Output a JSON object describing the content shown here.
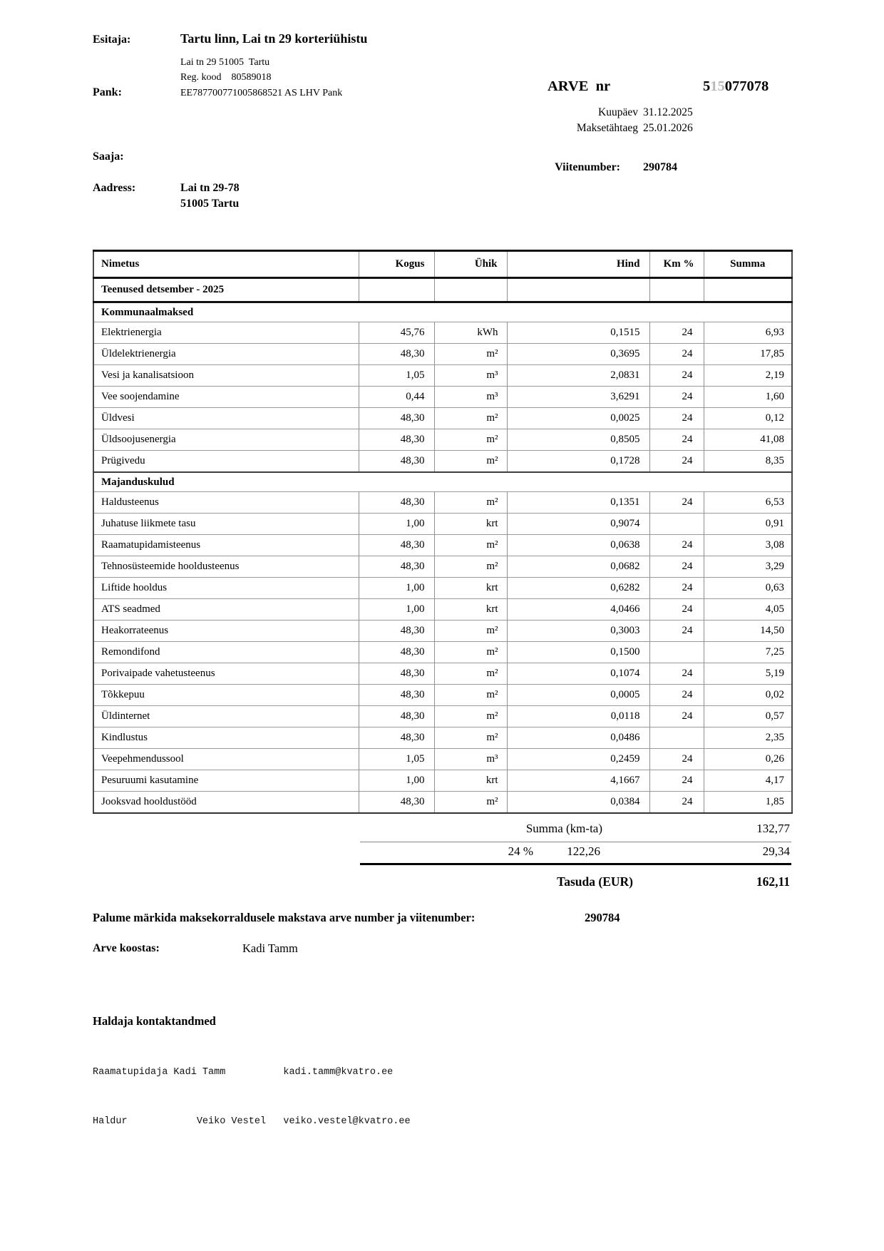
{
  "header": {
    "esitaja_label": "Esitaja:",
    "issuer_name": "Tartu linn, Lai tn 29 korteriühistu",
    "issuer_address": "Lai tn 29 51005  Tartu",
    "issuer_reg": "Reg. kood    80589018",
    "pank_label": "Pank:",
    "bank_account": "EE787700771005868521 AS LHV Pank",
    "arve_nr_label": "ARVE  nr",
    "invoice_number": {
      "part1": "5",
      "part2": "15",
      "part3": "077078"
    },
    "kuupaev_label": "Kuupäev",
    "kuupaev_value": "31.12.2025",
    "maksetahtaeg_label": "Maksetähtaeg",
    "maksetahtaeg_value": "25.01.2026",
    "saaja_label": "Saaja:",
    "viitenumber_label": "Viitenumber:",
    "viitenumber_value": "290784",
    "aadress_label": "Aadress:",
    "aadress_line1": "Lai tn 29-78",
    "aadress_line2": "51005 Tartu"
  },
  "table": {
    "columns": [
      "Nimetus",
      "Kogus",
      "Ühik",
      "Hind",
      "Km %",
      "Summa"
    ],
    "rows": [
      {
        "type": "title",
        "name": "Teenused detsember - 2025",
        "kogus": "",
        "yhik": "",
        "hind": "",
        "km": "",
        "summa": ""
      },
      {
        "type": "section",
        "name": "Kommunaalmaksed"
      },
      {
        "type": "item",
        "name": "Elektrienergia",
        "kogus": "45,76",
        "yhik": "kWh",
        "hind": "0,1515",
        "km": "24",
        "summa": "6,93"
      },
      {
        "type": "item",
        "name": "Üldelektrienergia",
        "kogus": "48,30",
        "yhik": "m²",
        "hind": "0,3695",
        "km": "24",
        "summa": "17,85"
      },
      {
        "type": "item",
        "name": "Vesi ja kanalisatsioon",
        "kogus": "1,05",
        "yhik": "m³",
        "hind": "2,0831",
        "km": "24",
        "summa": "2,19"
      },
      {
        "type": "item",
        "name": "Vee soojendamine",
        "kogus": "0,44",
        "yhik": "m³",
        "hind": "3,6291",
        "km": "24",
        "summa": "1,60"
      },
      {
        "type": "item",
        "name": "Üldvesi",
        "kogus": "48,30",
        "yhik": "m²",
        "hind": "0,0025",
        "km": "24",
        "summa": "0,12"
      },
      {
        "type": "item",
        "name": "Üldsoojusenergia",
        "kogus": "48,30",
        "yhik": "m²",
        "hind": "0,8505",
        "km": "24",
        "summa": "41,08"
      },
      {
        "type": "item",
        "name": "Prügivedu",
        "kogus": "48,30",
        "yhik": "m²",
        "hind": "0,1728",
        "km": "24",
        "summa": "8,35"
      },
      {
        "type": "section",
        "name": "Majanduskulud"
      },
      {
        "type": "item",
        "name": "Haldusteenus",
        "kogus": "48,30",
        "yhik": "m²",
        "hind": "0,1351",
        "km": "24",
        "summa": "6,53"
      },
      {
        "type": "item",
        "name": "Juhatuse liikmete tasu",
        "kogus": "1,00",
        "yhik": "krt",
        "hind": "0,9074",
        "km": "",
        "summa": "0,91"
      },
      {
        "type": "item",
        "name": "Raamatupidamisteenus",
        "kogus": "48,30",
        "yhik": "m²",
        "hind": "0,0638",
        "km": "24",
        "summa": "3,08"
      },
      {
        "type": "item",
        "name": "Tehnosüsteemide hooldusteenus",
        "kogus": "48,30",
        "yhik": "m²",
        "hind": "0,0682",
        "km": "24",
        "summa": "3,29"
      },
      {
        "type": "item",
        "name": "Liftide hooldus",
        "kogus": "1,00",
        "yhik": "krt",
        "hind": "0,6282",
        "km": "24",
        "summa": "0,63"
      },
      {
        "type": "item",
        "name": "ATS seadmed",
        "kogus": "1,00",
        "yhik": "krt",
        "hind": "4,0466",
        "km": "24",
        "summa": "4,05"
      },
      {
        "type": "item",
        "name": "Heakorrateenus",
        "kogus": "48,30",
        "yhik": "m²",
        "hind": "0,3003",
        "km": "24",
        "summa": "14,50"
      },
      {
        "type": "item",
        "name": "Remondifond",
        "kogus": "48,30",
        "yhik": "m²",
        "hind": "0,1500",
        "km": "",
        "summa": "7,25"
      },
      {
        "type": "item",
        "name": "Porivaipade vahetusteenus",
        "kogus": "48,30",
        "yhik": "m²",
        "hind": "0,1074",
        "km": "24",
        "summa": "5,19"
      },
      {
        "type": "item",
        "name": "Tõkkepuu",
        "kogus": "48,30",
        "yhik": "m²",
        "hind": "0,0005",
        "km": "24",
        "summa": "0,02"
      },
      {
        "type": "item",
        "name": "Üldinternet",
        "kogus": "48,30",
        "yhik": "m²",
        "hind": "0,0118",
        "km": "24",
        "summa": "0,57"
      },
      {
        "type": "item",
        "name": "Kindlustus",
        "kogus": "48,30",
        "yhik": "m²",
        "hind": "0,0486",
        "km": "",
        "summa": "2,35"
      },
      {
        "type": "item",
        "name": "Veepehmendussool",
        "kogus": "1,05",
        "yhik": "m³",
        "hind": "0,2459",
        "km": "24",
        "summa": "0,26"
      },
      {
        "type": "item",
        "name": "Pesuruumi kasutamine",
        "kogus": "1,00",
        "yhik": "krt",
        "hind": "4,1667",
        "km": "24",
        "summa": "4,17"
      },
      {
        "type": "item",
        "name": "Jooksvad hooldustööd",
        "kogus": "48,30",
        "yhik": "m²",
        "hind": "0,0384",
        "km": "24",
        "summa": "1,85"
      }
    ]
  },
  "summary": {
    "subtotal_label": "Summa (km-ta)",
    "subtotal_value": "132,77",
    "vat_rate": "24 %",
    "vat_base": "122,26",
    "vat_amount": "29,34",
    "total_label": "Tasuda (EUR)",
    "total_value": "162,11"
  },
  "footer": {
    "payment_note_label": "Palume märkida maksekorraldusele makstava arve number ja viitenumber:",
    "payment_note_value": "290784",
    "koostas_label": "Arve koostas:",
    "koostas_value": "Kadi Tamm",
    "haldaja_title": "Haldaja kontaktandmed",
    "contact_line1": "Raamatupidaja Kadi Tamm          kadi.tamm@kvatro.ee",
    "contact_line2": "Haldur            Veiko Vestel   veiko.vestel@kvatro.ee"
  },
  "colors": {
    "ghost_digits": "#b9b9b9",
    "thin_rule": "#888888",
    "thick_rule": "#000000"
  }
}
